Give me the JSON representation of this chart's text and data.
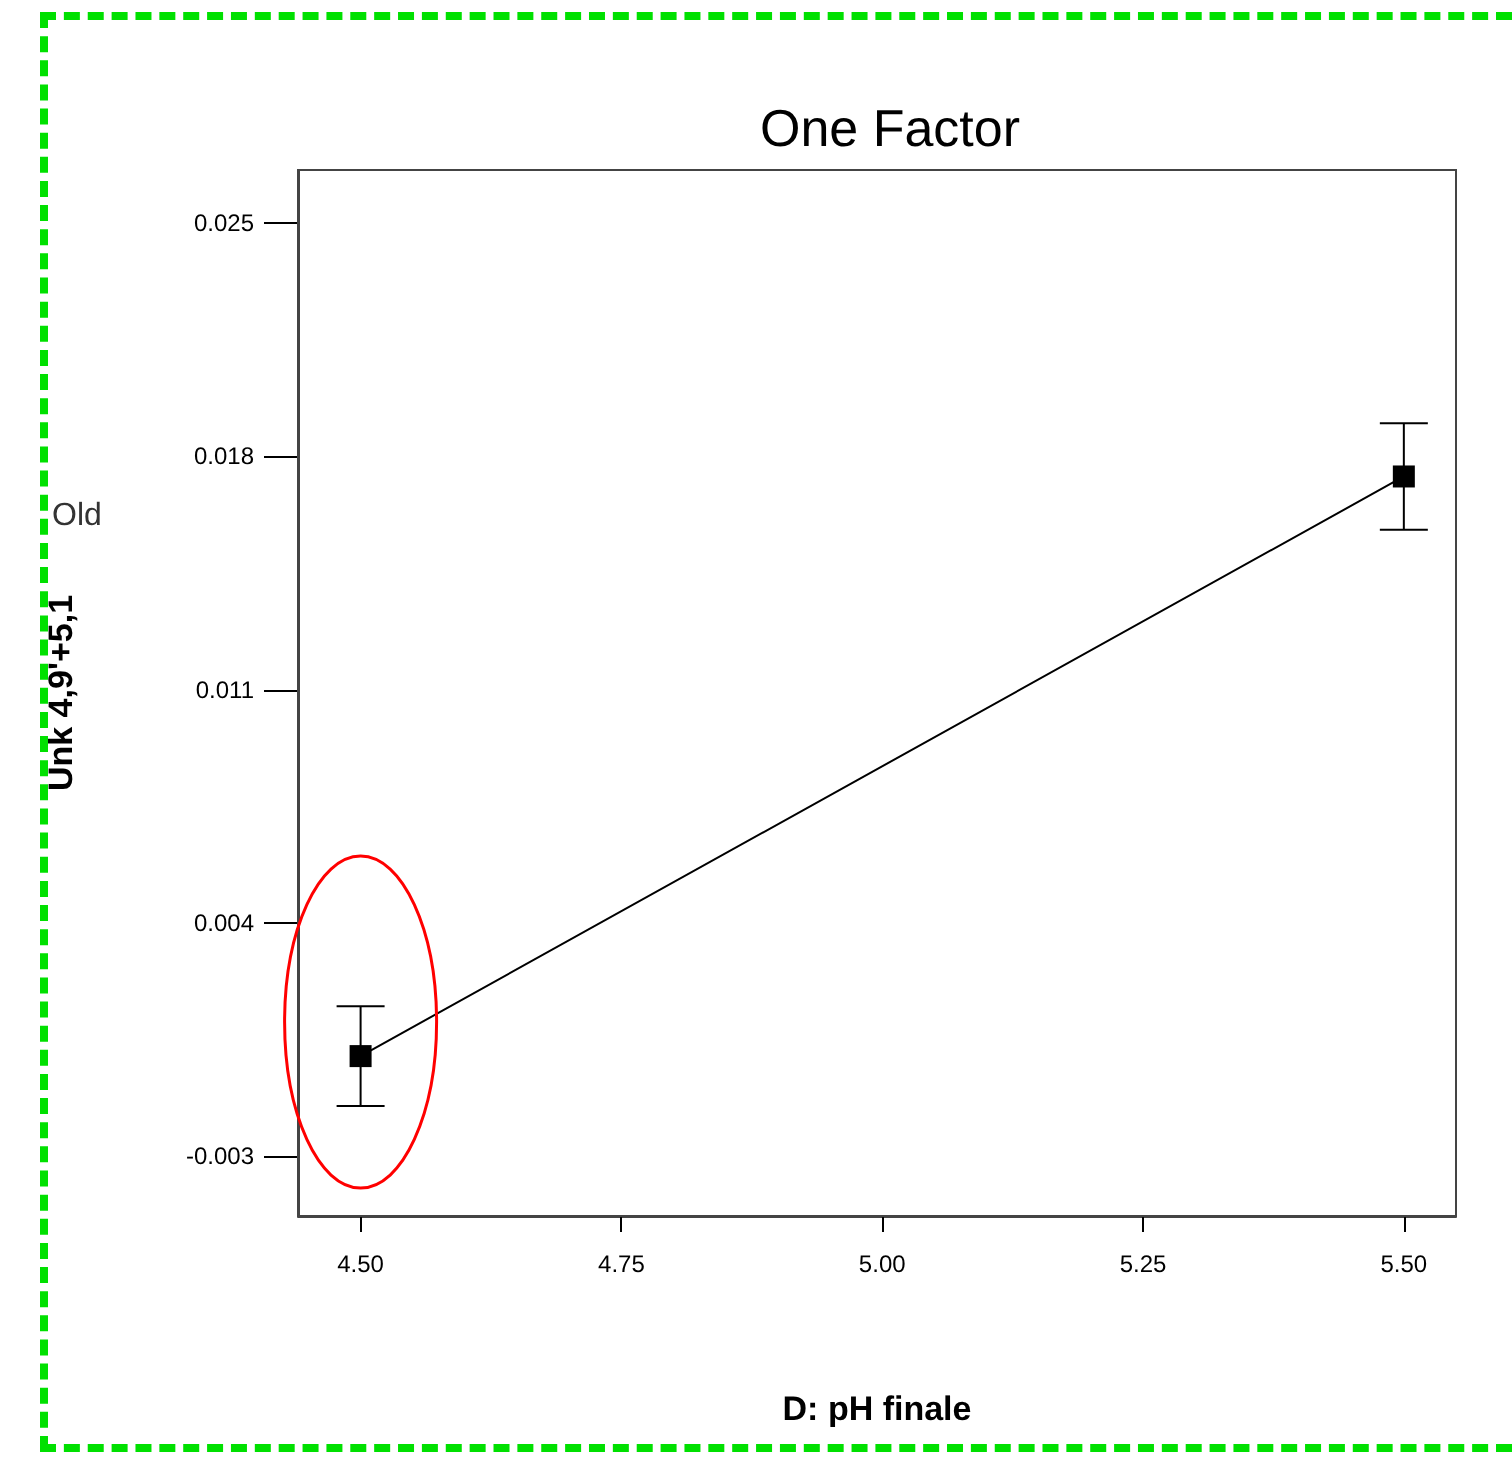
{
  "chart_data": {
    "type": "line",
    "title": "One Factor",
    "xlabel": "D: pH finale",
    "ylabel": "Unk 4,9'+5,1",
    "annotations": [
      "Old"
    ],
    "x": [
      4.5,
      5.5
    ],
    "series": [
      {
        "color": "#000000",
        "values": [
          0.0,
          0.0174
        ],
        "errors": [
          0.0015,
          0.0016
        ]
      }
    ],
    "marker": "square",
    "line_style": "solid",
    "grid": false,
    "legend": false,
    "xlim": [
      4.44,
      5.55
    ],
    "xticks": [
      {
        "value": 4.5,
        "label": "4.50"
      },
      {
        "value": 4.75,
        "label": "4.75"
      },
      {
        "value": 5.0,
        "label": "5.00"
      },
      {
        "value": 5.25,
        "label": "5.25"
      },
      {
        "value": 5.5,
        "label": "5.50"
      }
    ],
    "ylim": [
      -0.0048,
      0.0266
    ],
    "yticks": [
      -0.003,
      0.004,
      0.011,
      0.018,
      0.025
    ]
  }
}
